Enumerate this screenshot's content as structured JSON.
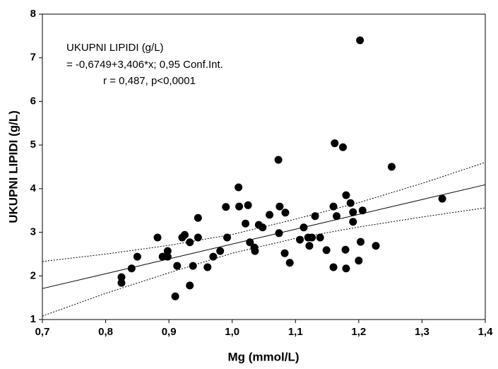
{
  "chart_data": {
    "type": "scatter",
    "x_label": "Mg (mmol/L)",
    "y_label": "UKUPNI LIPIDI (g/L)",
    "annotation": [
      "UKUPNI LIPIDI (g/L)",
      "= -0,6749+3,406*x; 0,95 Conf.Int.",
      "r = 0,487, p<0,0001"
    ],
    "xlim": [
      0.7,
      1.4
    ],
    "ylim": [
      1,
      8
    ],
    "xticks": [
      {
        "value": 0.7,
        "label": "0,7"
      },
      {
        "value": 0.8,
        "label": "0,8"
      },
      {
        "value": 0.9,
        "label": "0,9"
      },
      {
        "value": 1.0,
        "label": "1,0"
      },
      {
        "value": 1.1,
        "label": "1,1"
      },
      {
        "value": 1.2,
        "label": "1,2"
      },
      {
        "value": 1.3,
        "label": "1,3"
      },
      {
        "value": 1.4,
        "label": "1,4"
      }
    ],
    "yticks": [
      1,
      2,
      3,
      4,
      5,
      6,
      7,
      8
    ],
    "color": "#000000",
    "points": {
      "x": [
        0.825,
        0.825,
        0.841,
        0.85,
        0.882,
        0.89,
        0.898,
        0.898,
        0.91,
        0.913,
        0.921,
        0.925,
        0.933,
        0.933,
        0.938,
        0.946,
        0.946,
        0.961,
        0.97,
        0.981,
        0.99,
        0.992,
        1.011,
        1.01,
        1.021,
        1.025,
        1.028,
        1.035,
        1.036,
        1.042,
        1.048,
        1.059,
        1.073,
        1.074,
        1.075,
        1.083,
        1.084,
        1.091,
        1.107,
        1.113,
        1.12,
        1.122,
        1.126,
        1.131,
        1.139,
        1.149,
        1.16,
        1.16,
        1.162,
        1.165,
        1.175,
        1.18,
        1.179,
        1.18,
        1.187,
        1.191,
        1.191,
        1.2,
        1.202,
        1.203,
        1.206,
        1.227,
        1.252,
        1.332
      ],
      "values": [
        1.97,
        1.84,
        2.17,
        2.44,
        2.88,
        2.44,
        2.44,
        2.57,
        1.53,
        2.23,
        2.88,
        2.94,
        2.77,
        1.78,
        2.23,
        2.88,
        3.33,
        2.2,
        2.44,
        2.57,
        3.58,
        2.88,
        3.59,
        4.03,
        3.2,
        3.62,
        2.77,
        2.65,
        2.57,
        3.17,
        3.11,
        3.4,
        4.66,
        2.98,
        3.59,
        2.52,
        3.45,
        2.3,
        2.83,
        3.11,
        2.88,
        2.69,
        2.88,
        3.37,
        2.88,
        2.59,
        3.59,
        2.2,
        5.04,
        3.37,
        4.95,
        3.85,
        2.6,
        2.17,
        3.67,
        3.46,
        3.24,
        2.35,
        7.4,
        2.78,
        3.5,
        2.69,
        4.5,
        3.77
      ]
    },
    "fit": {
      "x": [
        0.7,
        1.4
      ],
      "values": [
        1.71,
        4.09
      ]
    },
    "upper": {
      "x": [
        0.7,
        0.8,
        0.9,
        1.0,
        1.1,
        1.2,
        1.3,
        1.4
      ],
      "values": [
        2.33,
        2.5,
        2.7,
        2.95,
        3.3,
        3.68,
        4.12,
        4.6
      ]
    },
    "lower": {
      "x": [
        0.7,
        0.8,
        0.9,
        1.0,
        1.1,
        1.2,
        1.3,
        1.4
      ],
      "values": [
        1.08,
        1.6,
        2.07,
        2.52,
        2.86,
        3.12,
        3.35,
        3.56
      ]
    }
  }
}
